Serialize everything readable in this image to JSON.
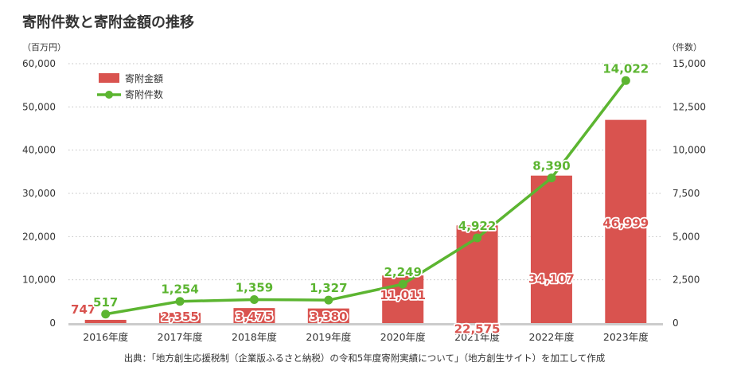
{
  "title": "寄附件数と寄附金額の推移",
  "source": "出典：「地方創生応援税制（企業版ふるさと納税）の令和5年度寄附実績について」（地方創生サイト）を加工して作成",
  "colors": {
    "bar": "#d9534f",
    "line": "#5cb531",
    "grid": "#bfbfbf",
    "axis": "#cccccc",
    "text": "#333333"
  },
  "chart_data": {
    "type": "bar+line",
    "categories": [
      "2016年度",
      "2017年度",
      "2018年度",
      "2019年度",
      "2020年度",
      "2021年度",
      "2022年度",
      "2023年度"
    ],
    "left_axis": {
      "unit": "（百万円）",
      "ylim": [
        0,
        60000
      ],
      "ticks": [
        "0",
        "10,000",
        "20,000",
        "30,000",
        "40,000",
        "50,000",
        "60,000"
      ]
    },
    "right_axis": {
      "unit": "（件数）",
      "ylim": [
        0,
        15000
      ],
      "ticks": [
        "0",
        "2,500",
        "5,000",
        "7,500",
        "10,000",
        "12,500",
        "15,000"
      ]
    },
    "grid": true,
    "legend_position": "top-left",
    "series": [
      {
        "name": "寄附金額",
        "type": "bar",
        "axis": "left",
        "values": [
          747,
          2355,
          3475,
          3380,
          11011,
          22575,
          34107,
          46999
        ],
        "labels": [
          "747",
          "2,355",
          "3,475",
          "3,380",
          "11,011",
          "22,575",
          "34,107",
          "46,999"
        ]
      },
      {
        "name": "寄附件数",
        "type": "line",
        "axis": "right",
        "values": [
          517,
          1254,
          1359,
          1327,
          2249,
          4922,
          8390,
          14022
        ],
        "labels": [
          "517",
          "1,254",
          "1,359",
          "1,327",
          "2,249",
          "4,922",
          "8,390",
          "14,022"
        ]
      }
    ]
  }
}
